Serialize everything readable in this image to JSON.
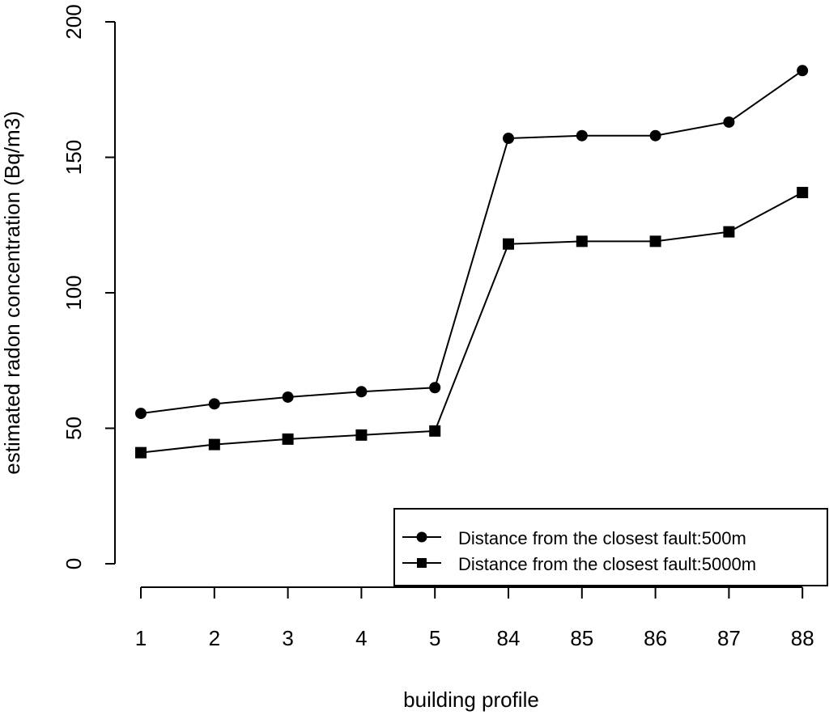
{
  "chart_data": {
    "type": "line",
    "xlabel": "building profile",
    "ylabel": "estimated radon concentration (Bq/m3)",
    "categories": [
      "1",
      "2",
      "3",
      "4",
      "5",
      "84",
      "85",
      "86",
      "87",
      "88"
    ],
    "ylim": [
      0,
      200
    ],
    "yticks": [
      0,
      50,
      100,
      150,
      200
    ],
    "grid": false,
    "legend_position": "bottom-right",
    "series": [
      {
        "name": "Distance from the closest fault:500m",
        "marker": "circle",
        "values": [
          55.5,
          59,
          61.5,
          63.5,
          65,
          157,
          158,
          158,
          163,
          182
        ]
      },
      {
        "name": "Distance from the closest fault:5000m",
        "marker": "square",
        "values": [
          41,
          44,
          46,
          47.5,
          49,
          118,
          119,
          119,
          122.5,
          137
        ]
      }
    ],
    "colors": {
      "line": "#000000",
      "background": "#ffffff"
    }
  }
}
